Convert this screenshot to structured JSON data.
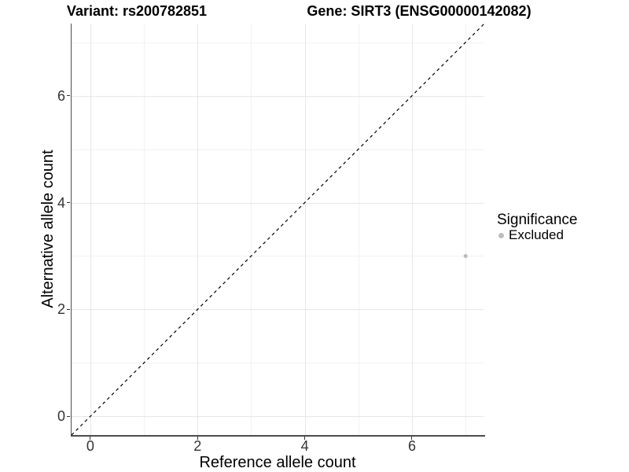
{
  "titles": {
    "variant": "Variant: rs200782851",
    "gene": "Gene: SIRT3 (ENSG00000142082)"
  },
  "axes": {
    "x_label": "Reference allele count",
    "y_label": "Alternative allele count"
  },
  "legend": {
    "title": "Significance",
    "items": [
      {
        "label": "Excluded",
        "color": "#bdbdbd"
      }
    ]
  },
  "chart_data": {
    "type": "scatter",
    "title": "Variant: rs200782851 — Gene: SIRT3 (ENSG00000142082)",
    "xlabel": "Reference allele count",
    "ylabel": "Alternative allele count",
    "xlim": [
      -0.35,
      7.35
    ],
    "ylim": [
      -0.35,
      7.35
    ],
    "x_ticks": [
      0,
      2,
      4,
      6
    ],
    "y_ticks": [
      0,
      2,
      4,
      6
    ],
    "x_minor_ticks": [
      1,
      3,
      5,
      7
    ],
    "y_minor_ticks": [
      1,
      3,
      5,
      7
    ],
    "grid": true,
    "legend_position": "right",
    "series": [
      {
        "name": "Excluded",
        "color": "#bdbdbd",
        "marker": "circle",
        "points": [
          {
            "x": 7,
            "y": 3
          }
        ]
      }
    ],
    "reference_line": {
      "type": "identity y=x",
      "style": "dashed",
      "color": "#000000",
      "from": [
        -0.35,
        -0.35
      ],
      "to": [
        7.35,
        7.35
      ]
    },
    "theme": {
      "grid_major": "#e7e7e7",
      "grid_minor": "#f2f2f2",
      "axis_line": "#4d4d4d",
      "tick_color": "#333333",
      "background": "#ffffff"
    }
  }
}
